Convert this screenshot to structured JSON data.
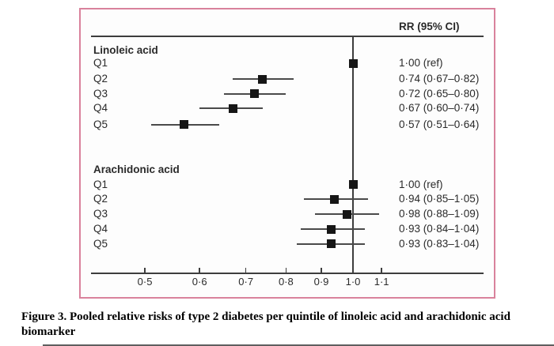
{
  "chart_data": {
    "type": "forest",
    "column_header": "RR (95% CI)",
    "x_axis": {
      "scale": "log",
      "ticks": [
        0.5,
        0.6,
        0.7,
        0.8,
        0.9,
        1.0,
        1.1
      ],
      "tick_labels": [
        "0·5",
        "0·6",
        "0·7",
        "0·8",
        "0·9",
        "1·0",
        "1·1"
      ],
      "reference_line": 1.0,
      "xlim": [
        0.45,
        1.18
      ]
    },
    "sections": [
      {
        "label": "Linoleic acid",
        "rows": [
          {
            "label": "Q1",
            "rr": 1.0,
            "lo": null,
            "hi": null,
            "text": "1·00 (ref)"
          },
          {
            "label": "Q2",
            "rr": 0.74,
            "lo": 0.67,
            "hi": 0.82,
            "text": "0·74 (0·67–0·82)"
          },
          {
            "label": "Q3",
            "rr": 0.72,
            "lo": 0.65,
            "hi": 0.8,
            "text": "0·72 (0·65–0·80)"
          },
          {
            "label": "Q4",
            "rr": 0.67,
            "lo": 0.6,
            "hi": 0.74,
            "text": "0·67 (0·60–0·74)"
          },
          {
            "label": "Q5",
            "rr": 0.57,
            "lo": 0.51,
            "hi": 0.64,
            "text": "0·57 (0·51–0·64)"
          }
        ]
      },
      {
        "label": "Arachidonic acid",
        "rows": [
          {
            "label": "Q1",
            "rr": 1.0,
            "lo": null,
            "hi": null,
            "text": "1·00 (ref)"
          },
          {
            "label": "Q2",
            "rr": 0.94,
            "lo": 0.85,
            "hi": 1.05,
            "text": "0·94 (0·85–1·05)"
          },
          {
            "label": "Q3",
            "rr": 0.98,
            "lo": 0.88,
            "hi": 1.09,
            "text": "0·98 (0·88–1·09)"
          },
          {
            "label": "Q4",
            "rr": 0.93,
            "lo": 0.84,
            "hi": 1.04,
            "text": "0·93 (0·84–1·04)"
          },
          {
            "label": "Q5",
            "rr": 0.93,
            "lo": 0.83,
            "hi": 1.04,
            "text": "0·93 (0·83–1·04)"
          }
        ]
      }
    ]
  },
  "caption": {
    "line1": "Figure 3. Pooled relative risks of type 2 diabetes per quintile of linoleic acid and arachidonic acid",
    "line2": "biomarker"
  },
  "colors": {
    "frame_pink": "#d9829c",
    "ink": "#2a2a2a",
    "marker_black": "#161616"
  }
}
